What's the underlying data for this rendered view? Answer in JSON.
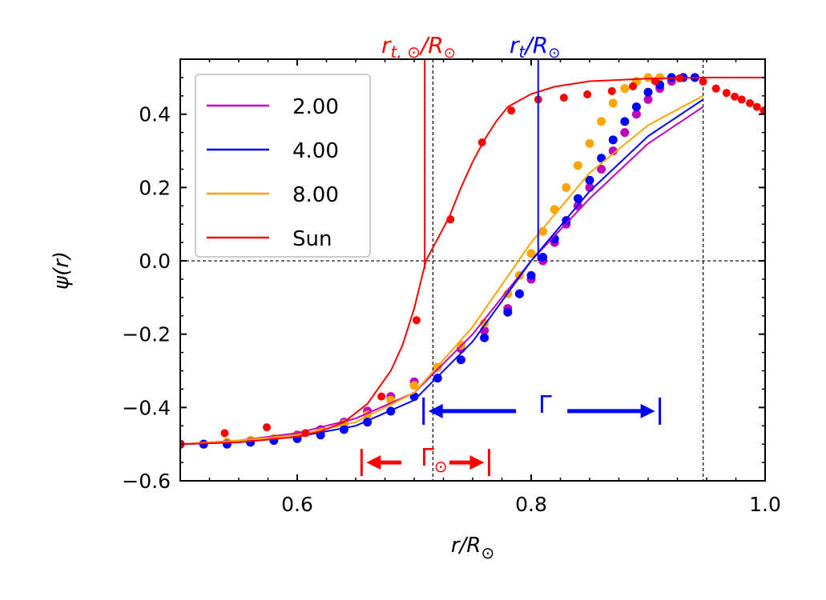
{
  "chart_data": {
    "type": "line",
    "xlabel": "r/R⊙",
    "ylabel": "ψ(r)",
    "xlim": [
      0.5,
      1.0
    ],
    "ylim": [
      -0.6,
      0.55
    ],
    "x_ticks": [
      {
        "value": 0.6,
        "label": "0.6"
      },
      {
        "value": 0.8,
        "label": "0.8"
      },
      {
        "value": 1.0,
        "label": "1.0"
      }
    ],
    "y_ticks": [
      {
        "value": 0.4,
        "label": "0.4"
      },
      {
        "value": 0.2,
        "label": "0.2"
      },
      {
        "value": 0.0,
        "label": "0.0"
      },
      {
        "value": -0.2,
        "label": "−0.2"
      },
      {
        "value": -0.4,
        "label": "−0.4"
      },
      {
        "value": -0.6,
        "label": "−0.6"
      }
    ],
    "grid": false,
    "legend": {
      "placement": "top-left",
      "entries": [
        {
          "label": "2.00",
          "color": "#bf00bf"
        },
        {
          "label": "4.00",
          "color": "#0000ff"
        },
        {
          "label": "8.00",
          "color": "#ffa500"
        },
        {
          "label": "Sun",
          "color": "#ff0000"
        }
      ]
    },
    "series": [
      {
        "name": "2.00",
        "color": "#bf00bf",
        "points_x": [
          0.5,
          0.52,
          0.54,
          0.56,
          0.58,
          0.6,
          0.62,
          0.64,
          0.66,
          0.68,
          0.7,
          0.72,
          0.74,
          0.76,
          0.78,
          0.79,
          0.8,
          0.81,
          0.82,
          0.83,
          0.84,
          0.85,
          0.86,
          0.87,
          0.88,
          0.89,
          0.9,
          0.91,
          0.92,
          0.93,
          0.94
        ],
        "points_y": [
          -0.5,
          -0.5,
          -0.495,
          -0.49,
          -0.485,
          -0.475,
          -0.46,
          -0.44,
          -0.41,
          -0.37,
          -0.33,
          -0.29,
          -0.24,
          -0.19,
          -0.13,
          -0.09,
          -0.05,
          -0.0,
          0.05,
          0.1,
          0.15,
          0.2,
          0.25,
          0.3,
          0.35,
          0.4,
          0.44,
          0.47,
          0.49,
          0.5,
          0.5
        ],
        "fit_x": [
          0.5,
          0.55,
          0.6,
          0.65,
          0.7,
          0.75,
          0.8,
          0.85,
          0.9,
          0.947
        ],
        "fit_y": [
          -0.5,
          -0.49,
          -0.47,
          -0.43,
          -0.36,
          -0.2,
          0.0,
          0.17,
          0.32,
          0.42
        ]
      },
      {
        "name": "4.00",
        "color": "#0000ff",
        "points_x": [
          0.5,
          0.52,
          0.54,
          0.56,
          0.58,
          0.6,
          0.62,
          0.64,
          0.66,
          0.68,
          0.7,
          0.72,
          0.74,
          0.76,
          0.78,
          0.79,
          0.8,
          0.81,
          0.82,
          0.83,
          0.84,
          0.85,
          0.86,
          0.87,
          0.88,
          0.89,
          0.9,
          0.91,
          0.92,
          0.93,
          0.94
        ],
        "points_y": [
          -0.5,
          -0.5,
          -0.5,
          -0.495,
          -0.49,
          -0.485,
          -0.475,
          -0.46,
          -0.44,
          -0.41,
          -0.37,
          -0.32,
          -0.27,
          -0.21,
          -0.14,
          -0.09,
          -0.04,
          0.01,
          0.06,
          0.11,
          0.17,
          0.22,
          0.28,
          0.33,
          0.38,
          0.42,
          0.46,
          0.48,
          0.5,
          0.5,
          0.5
        ],
        "fit_x": [
          0.5,
          0.55,
          0.6,
          0.65,
          0.7,
          0.75,
          0.8,
          0.85,
          0.9,
          0.947
        ],
        "fit_y": [
          -0.5,
          -0.495,
          -0.48,
          -0.45,
          -0.38,
          -0.22,
          0.0,
          0.19,
          0.34,
          0.44
        ]
      },
      {
        "name": "8.00",
        "color": "#ffa500",
        "points_x": [
          0.5,
          0.52,
          0.54,
          0.56,
          0.58,
          0.6,
          0.62,
          0.64,
          0.66,
          0.68,
          0.7,
          0.72,
          0.74,
          0.76,
          0.78,
          0.79,
          0.8,
          0.81,
          0.82,
          0.83,
          0.84,
          0.85,
          0.86,
          0.87,
          0.88,
          0.89,
          0.9,
          0.91,
          0.92,
          0.93,
          0.94
        ],
        "points_y": [
          -0.5,
          -0.5,
          -0.495,
          -0.49,
          -0.485,
          -0.478,
          -0.465,
          -0.445,
          -0.42,
          -0.38,
          -0.34,
          -0.29,
          -0.23,
          -0.17,
          -0.09,
          -0.04,
          0.02,
          0.08,
          0.14,
          0.2,
          0.26,
          0.32,
          0.38,
          0.43,
          0.47,
          0.49,
          0.5,
          0.5,
          0.5,
          0.5,
          0.5
        ],
        "fit_x": [
          0.5,
          0.55,
          0.6,
          0.65,
          0.7,
          0.75,
          0.8,
          0.85,
          0.9,
          0.947
        ],
        "fit_y": [
          -0.5,
          -0.49,
          -0.475,
          -0.44,
          -0.36,
          -0.18,
          0.05,
          0.24,
          0.37,
          0.45
        ]
      },
      {
        "name": "Sun",
        "color": "#ff0000",
        "points_x": [
          0.5,
          0.538,
          0.574,
          0.607,
          0.672,
          0.702,
          0.731,
          0.758,
          0.783,
          0.806,
          0.828,
          0.848,
          0.869,
          0.887,
          0.906,
          0.927,
          0.947,
          0.958,
          0.967,
          0.974,
          0.98,
          0.987,
          0.993,
          0.999
        ],
        "points_y": [
          -0.5,
          -0.47,
          -0.454,
          -0.47,
          -0.37,
          -0.162,
          0.113,
          0.323,
          0.41,
          0.44,
          0.445,
          0.454,
          0.463,
          0.476,
          0.49,
          0.498,
          0.489,
          0.47,
          0.458,
          0.448,
          0.44,
          0.43,
          0.42,
          0.41
        ],
        "fit_x": [
          0.5,
          0.55,
          0.6,
          0.62,
          0.64,
          0.66,
          0.68,
          0.69,
          0.7,
          0.71,
          0.72,
          0.73,
          0.74,
          0.75,
          0.76,
          0.77,
          0.78,
          0.8,
          0.82,
          0.85,
          0.9,
          0.95,
          1.0
        ],
        "fit_y": [
          -0.5,
          -0.495,
          -0.48,
          -0.465,
          -0.44,
          -0.39,
          -0.3,
          -0.23,
          -0.13,
          0.0,
          0.06,
          0.12,
          0.2,
          0.27,
          0.33,
          0.38,
          0.42,
          0.455,
          0.475,
          0.49,
          0.497,
          0.5,
          0.5
        ]
      }
    ],
    "reference_lines": {
      "vertical_dashed": [
        0.716,
        0.947
      ],
      "horizontal_dashed": 0.0,
      "sun_transition": {
        "x": 0.709,
        "label": "r_{t,⊙}/R⊙",
        "color": "#ff0000"
      },
      "star_transition": {
        "x": 0.806,
        "label": "r_t/R⊙",
        "color": "#0000ff"
      }
    },
    "annotations": [
      {
        "label": "Γ",
        "from_x": 0.708,
        "to_x": 0.91,
        "y": -0.41,
        "color": "#0000ff"
      },
      {
        "label": "Γ⊙",
        "from_x": 0.655,
        "to_x": 0.764,
        "y": -0.55,
        "color": "#ff0000"
      }
    ]
  },
  "labels": {
    "top_red": "r",
    "top_red_sub": "t, ⊙",
    "top_red_tail": "/R",
    "top_red_tail_sub": "⊙",
    "top_blue": "r",
    "top_blue_sub": "t",
    "top_blue_tail": "/R",
    "top_blue_tail_sub": "⊙",
    "gamma_blue": "Γ",
    "gamma_red": "Γ",
    "gamma_red_sub": "⊙",
    "xlabel_main": "r/R",
    "xlabel_sub": "⊙",
    "ylabel": "ψ(r)"
  }
}
